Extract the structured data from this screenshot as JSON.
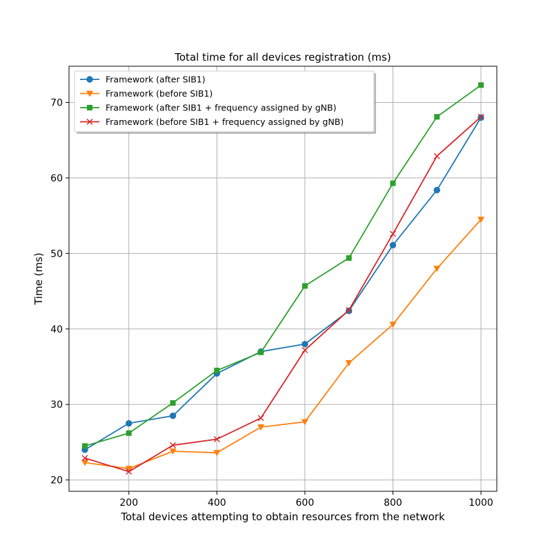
{
  "chart_data": {
    "type": "line",
    "title": "Total time for all devices registration (ms)",
    "xlabel": "Total devices attempting to obtain resources from the network",
    "ylabel": "Time (ms)",
    "xlim": [
      64,
      1036
    ],
    "ylim": [
      18.5,
      74.8
    ],
    "xticks": [
      200,
      400,
      600,
      800,
      1000
    ],
    "yticks": [
      20,
      30,
      40,
      50,
      60,
      70
    ],
    "grid": true,
    "legend_position": "top-left",
    "x": [
      100,
      200,
      300,
      400,
      500,
      600,
      700,
      800,
      900,
      1000
    ],
    "series": [
      {
        "name": "Framework (after SIB1)",
        "color": "#1f77b4",
        "marker": "circle",
        "values": [
          24.0,
          27.5,
          28.5,
          34.1,
          37.0,
          38.0,
          42.4,
          51.1,
          58.4,
          68.0
        ]
      },
      {
        "name": "Framework (before SIB1)",
        "color": "#ff7f0e",
        "marker": "triangle-down",
        "values": [
          22.3,
          21.5,
          23.8,
          23.6,
          27.0,
          27.7,
          35.5,
          40.6,
          48.0,
          54.5
        ]
      },
      {
        "name": "Framework (after SIB1 + frequency assigned by gNB)",
        "color": "#2ca02c",
        "marker": "square",
        "values": [
          24.5,
          26.2,
          30.2,
          34.5,
          36.9,
          45.7,
          49.4,
          59.3,
          68.1,
          72.3
        ]
      },
      {
        "name": "Framework (before SIB1 + frequency assigned by gNB)",
        "color": "#d62728",
        "marker": "x",
        "values": [
          22.9,
          21.1,
          24.6,
          25.4,
          28.2,
          37.2,
          42.5,
          52.6,
          62.9,
          68.1
        ]
      }
    ]
  }
}
